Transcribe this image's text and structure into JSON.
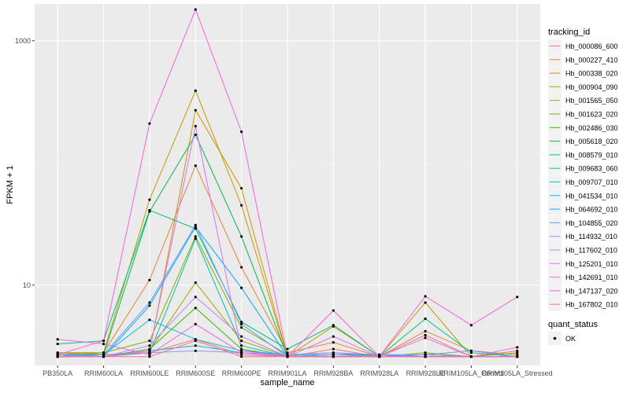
{
  "chart_data": {
    "type": "line",
    "xlabel": "sample_name",
    "ylabel": "FPKM + 1",
    "y_scale": "log10",
    "ylim": [
      2.2,
      2000
    ],
    "y_ticks": [
      {
        "value": 10,
        "label": "10"
      },
      {
        "value": 1000,
        "label": "1000"
      }
    ],
    "grid": true,
    "legend_position": "right",
    "categories": [
      "PB350LA",
      "RRIM600LA",
      "RRIM600LE",
      "RRIM600SE",
      "RRIM600PE",
      "RRIM901LA",
      "RRIM928BA",
      "RRIM928LA",
      "RRIM928LE",
      "RRIM105LA_Control",
      "RRIM105LA_Stressed"
    ],
    "tracking_legend_title": "tracking_id",
    "quant_legend_title": "quant_status",
    "quant_legend_label": "OK",
    "series": [
      {
        "name": "Hb_000086_600",
        "color": "#F8766D",
        "values": [
          2.8,
          2.7,
          2.8,
          3.6,
          2.7,
          2.6,
          3.0,
          2.6,
          3.9,
          2.6,
          2.9
        ]
      },
      {
        "name": "Hb_000227_410",
        "color": "#EA8331",
        "values": [
          2.7,
          2.8,
          11.0,
          95.0,
          14.0,
          2.8,
          3.4,
          2.6,
          4.2,
          2.9,
          2.7
        ]
      },
      {
        "name": "Hb_000338_020",
        "color": "#D89000",
        "values": [
          2.7,
          2.7,
          2.8,
          270.0,
          62.0,
          2.6,
          2.7,
          2.6,
          2.7,
          2.6,
          2.6
        ]
      },
      {
        "name": "Hb_000904_090",
        "color": "#C09B00",
        "values": [
          2.6,
          2.8,
          50.0,
          390.0,
          45.0,
          2.6,
          4.6,
          2.6,
          7.2,
          2.6,
          2.6
        ]
      },
      {
        "name": "Hb_001565_050",
        "color": "#A3A500",
        "values": [
          2.6,
          2.6,
          2.9,
          10.5,
          3.5,
          2.6,
          2.6,
          2.6,
          2.7,
          2.6,
          2.6
        ]
      },
      {
        "name": "Hb_001623_020",
        "color": "#7CAE00",
        "values": [
          2.8,
          2.8,
          3.5,
          25.0,
          4.5,
          2.7,
          2.8,
          2.6,
          2.8,
          2.6,
          2.8
        ]
      },
      {
        "name": "Hb_002486_030",
        "color": "#39B600",
        "values": [
          2.6,
          2.6,
          3.0,
          6.5,
          3.0,
          2.6,
          2.6,
          2.6,
          2.6,
          2.6,
          2.6
        ]
      },
      {
        "name": "Hb_005618_020",
        "color": "#00BB4E",
        "values": [
          2.6,
          2.7,
          40.0,
          170.0,
          25.0,
          2.6,
          2.7,
          2.6,
          2.6,
          2.6,
          2.6
        ]
      },
      {
        "name": "Hb_008579_010",
        "color": "#00BF7D",
        "values": [
          3.3,
          3.5,
          41.0,
          29.0,
          5.0,
          3.0,
          4.7,
          2.6,
          5.3,
          2.8,
          2.6
        ]
      },
      {
        "name": "Hb_009683_060",
        "color": "#00C1A3",
        "values": [
          2.6,
          2.6,
          2.8,
          24.0,
          3.2,
          2.6,
          2.6,
          2.6,
          2.6,
          2.6,
          2.6
        ]
      },
      {
        "name": "Hb_009707_010",
        "color": "#00BFC4",
        "values": [
          2.7,
          2.6,
          2.9,
          3.2,
          2.8,
          2.6,
          2.6,
          2.6,
          2.6,
          2.6,
          2.6
        ]
      },
      {
        "name": "Hb_041534_010",
        "color": "#00B8E7",
        "values": [
          2.7,
          2.7,
          5.2,
          3.6,
          2.9,
          2.7,
          2.7,
          2.6,
          2.6,
          2.6,
          2.6
        ]
      },
      {
        "name": "Hb_064692_010",
        "color": "#00A9FF",
        "values": [
          2.7,
          2.6,
          6.8,
          30.0,
          9.5,
          2.6,
          2.7,
          2.7,
          2.6,
          2.6,
          2.6
        ]
      },
      {
        "name": "Hb_104855_020",
        "color": "#619CFF",
        "values": [
          2.6,
          2.7,
          7.2,
          31.0,
          4.8,
          2.6,
          2.7,
          2.6,
          2.7,
          2.9,
          2.6
        ]
      },
      {
        "name": "Hb_114932_010",
        "color": "#9590FF",
        "values": [
          2.7,
          2.6,
          2.8,
          2.9,
          2.8,
          2.7,
          2.8,
          2.7,
          2.7,
          2.6,
          2.6
        ]
      },
      {
        "name": "Hb_117602_010",
        "color": "#B983FF",
        "values": [
          2.6,
          2.6,
          3.2,
          8.0,
          3.8,
          2.6,
          2.7,
          2.6,
          2.6,
          2.6,
          2.6
        ]
      },
      {
        "name": "Hb_125201_010",
        "color": "#DB72FB",
        "values": [
          2.6,
          2.6,
          2.9,
          200.0,
          2.9,
          2.6,
          3.8,
          2.6,
          3.7,
          2.6,
          3.1
        ]
      },
      {
        "name": "Hb_142691_010",
        "color": "#EF67EB",
        "values": [
          3.6,
          3.3,
          2.7,
          4.8,
          2.8,
          2.6,
          2.6,
          2.6,
          2.6,
          2.6,
          2.6
        ]
      },
      {
        "name": "Hb_147137_020",
        "color": "#FB61D7",
        "values": [
          2.7,
          3.5,
          210.0,
          1800.0,
          180.0,
          2.6,
          6.2,
          2.6,
          8.1,
          4.7,
          8.0
        ]
      },
      {
        "name": "Hb_167802_010",
        "color": "#FF6C91",
        "values": [
          2.6,
          2.6,
          2.6,
          3.5,
          2.6,
          2.6,
          2.6,
          2.6,
          2.6,
          2.6,
          2.6
        ]
      }
    ]
  }
}
